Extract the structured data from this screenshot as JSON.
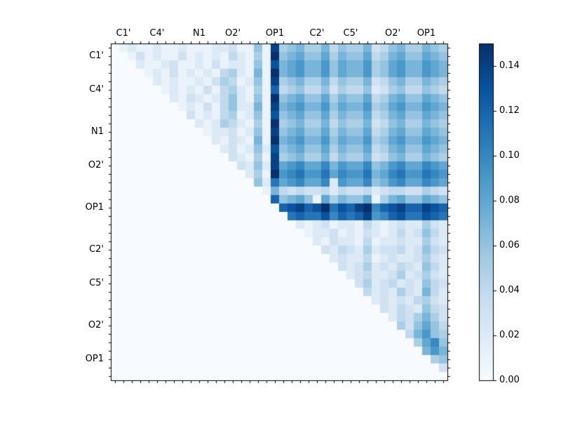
{
  "chart_data": {
    "type": "heatmap",
    "title": "",
    "description": "Upper-triangular pairwise atom correlation matrix, Blues colormap",
    "colormap": "Blues",
    "n": 40,
    "value_range": [
      0,
      0.15
    ],
    "x_axis": {
      "labels": [
        "C1'",
        "C4'",
        "N1",
        "O2'",
        "OP1",
        "C2'",
        "C5'",
        "O2'",
        "OP1"
      ],
      "cells": [
        1,
        5,
        10,
        14,
        19,
        24,
        28,
        33,
        37
      ]
    },
    "y_axis": {
      "labels": [
        "C1'",
        "C4'",
        "N1",
        "O2'",
        "OP1",
        "C2'",
        "C5'",
        "O2'",
        "OP1"
      ],
      "cells": [
        1,
        5,
        10,
        14,
        19,
        24,
        28,
        33,
        37
      ]
    },
    "matrix_encoding": "one hex digit per cell, row-major; value = digit/100 (so f = 0.15); lower triangle and diagonal are 0",
    "matrix_rows": [
      "0121121121112231161e56755746557346755765",
      "0013121131212142151f67866857668457866876",
      "0002112311213122161d78977968779568977987",
      "0000121312121452171f78977968779568977987",
      "0000021211213541261e56755746557346755765",
      "0000001212131452151c45644635446235644654",
      "0000000213212462161f67866857668457866876",
      "0000000012131462271e78977968779568977987",
      "0000000003121451261d67866857668457866876",
      "0000000000212542151f56755746557346755765",
      "0000000000012231261e67866857668457866876",
      "0000000000002132171f78977968779568977987",
      "0000000000000231262d67866857668457866876",
      "0000000000000032151e56755746557346755765",
      "0000000000000003262e89a88a7988a679a88a98",
      "0000000000000000251f9ab99b8a99b78ab99ba9",
      "0000000000000000062b89a88a2988a679a88a98",
      "0000000000000000001743433424334234433543",
      "0000000000000000000c67861857668157866876",
      "00000000000000000000cdecdfbdcefacdeccedc",
      "000000000000000000000bcbbdacbce9acdbbdcb",
      "0000000000000000000000212312214212322532",
      "0000000000000000000000012231213212423642",
      "0000000000000000000000002132214122322532",
      "0000000000000000000000000324325233423643",
      "0000000000000000000000000023224123223532",
      "0000000000000000000000000003235232432642",
      "0000000000000000000000000000234223523532",
      "0000000000000000000000000000035234232643",
      "0000000000000000000000000000004232532742",
      "0000000000000000000000000000000232324532",
      "0000000000000000000000000000000032432643",
      "0000000000000000000000000000000002435753",
      "0000000000000000000000000000000000536864",
      "0000000000000000000000000000000000047965",
      "00000000000000000000000000000000000058a6",
      "0000000000000000000000000000000000000797",
      "0000000000000000000000000000000000000056",
      "0000000000000000000000000000000000000003",
      "0000000000000000000000000000000000000000"
    ],
    "colorbar": {
      "tick_labels": [
        "0.00",
        "0.02",
        "0.04",
        "0.06",
        "0.08",
        "0.10",
        "0.12",
        "0.14"
      ],
      "tick_values": [
        0,
        0.02,
        0.04,
        0.06,
        0.08,
        0.1,
        0.12,
        0.14
      ],
      "vmin": 0,
      "vmax": 0.15
    },
    "legend_position": "right-colorbar",
    "grid": false
  },
  "colors": {
    "background": "#ffffff",
    "frame": "#000000",
    "cmap_stops": [
      "#f7fbff",
      "#deebf7",
      "#c6dbef",
      "#9ecae1",
      "#6baed6",
      "#4292c6",
      "#2171b5",
      "#08519c",
      "#08306b"
    ]
  }
}
